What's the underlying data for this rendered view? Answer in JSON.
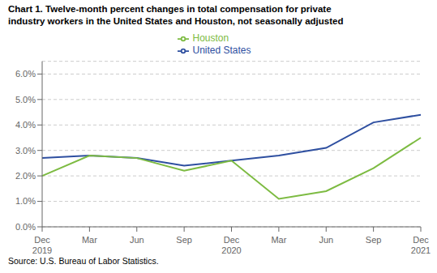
{
  "chart_data": {
    "type": "line",
    "title": "Chart 1. Twelve-month percent changes in total compensation for private\nindustry workers in the United States and Houston, not seasonally adjusted",
    "annotations": [
      "Source: U.S. Bureau of Labor Statistics."
    ],
    "categories": [
      "Dec\n2019",
      "Mar",
      "Jun",
      "Sep",
      "Dec\n2020",
      "Mar",
      "Jun",
      "Sep",
      "Dec\n2021"
    ],
    "series": [
      {
        "name": "United States",
        "color": "#2E4FA0",
        "values": [
          0.027,
          0.028,
          0.027,
          0.024,
          0.026,
          0.028,
          0.031,
          0.041,
          0.044
        ]
      },
      {
        "name": "Houston",
        "color": "#7DBB42",
        "values": [
          0.02,
          0.028,
          0.027,
          0.022,
          0.026,
          0.011,
          0.014,
          0.023,
          0.035
        ]
      }
    ],
    "ylim": [
      0.0,
      0.065
    ],
    "yticks": [
      {
        "value": 0.0,
        "label": "0.0%"
      },
      {
        "value": 0.01,
        "label": "1.0%"
      },
      {
        "value": 0.02,
        "label": "2.0%"
      },
      {
        "value": 0.03,
        "label": "3.0%"
      },
      {
        "value": 0.04,
        "label": "4.0%"
      },
      {
        "value": 0.05,
        "label": "5.0%"
      },
      {
        "value": 0.06,
        "label": "6.0%"
      }
    ],
    "grid": true,
    "legend": "top"
  }
}
